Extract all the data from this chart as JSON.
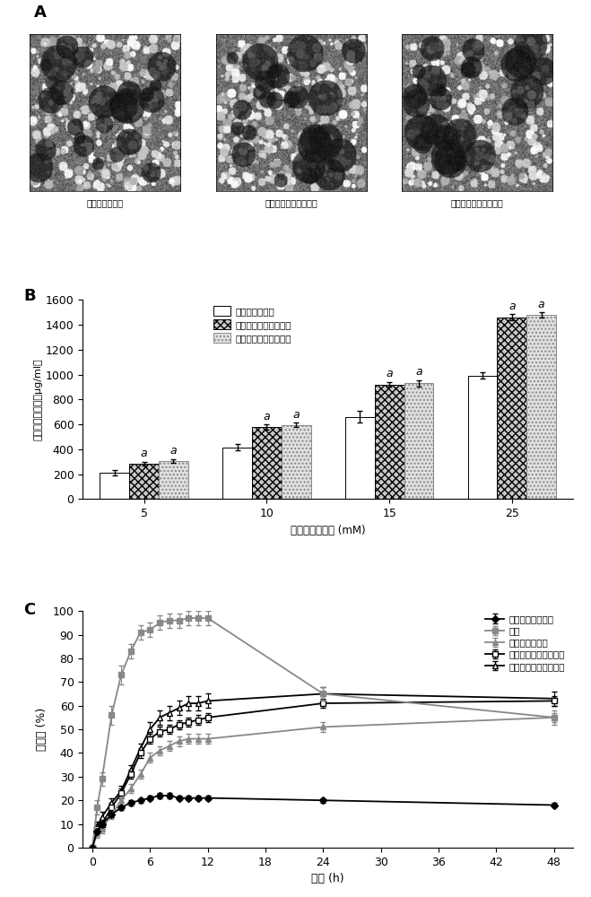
{
  "panel_A_labels": [
    "紫杉醒纳米胶束",
    "抗耔药紫杉醒纳米胶束",
    "功能化紫杉醒纳米胶束"
  ],
  "panel_B_xlabel": "载体材料的浓度 (mM)",
  "panel_B_ylabel": "紫杉醒的溶解度（μg/ml）",
  "panel_B_categories": [
    5,
    10,
    15,
    25
  ],
  "panel_B_series1_values": [
    210,
    415,
    660,
    990
  ],
  "panel_B_series1_errors": [
    20,
    25,
    45,
    25
  ],
  "panel_B_series2_values": [
    285,
    580,
    920,
    1460
  ],
  "panel_B_series2_errors": [
    15,
    20,
    20,
    25
  ],
  "panel_B_series3_values": [
    305,
    595,
    930,
    1480
  ],
  "panel_B_series3_errors": [
    15,
    18,
    25,
    20
  ],
  "panel_B_ylim": [
    0,
    1600
  ],
  "panel_B_yticks": [
    0,
    200,
    400,
    600,
    800,
    1000,
    1200,
    1400,
    1600
  ],
  "panel_B_legend": [
    "紫杉醒纳米胶束",
    "抗耔药紫杉醒纳米胶束",
    "功能化紫杉醒纳米胶束"
  ],
  "panel_C_xlabel": "时间 (h)",
  "panel_C_ylabel": "释放率 (%)",
  "panel_C_xticks": [
    0,
    6,
    12,
    18,
    24,
    30,
    36,
    42,
    48
  ],
  "panel_C_ylim": [
    0,
    100
  ],
  "panel_C_yticks": [
    0,
    10,
    20,
    30,
    40,
    50,
    60,
    70,
    80,
    90,
    100
  ],
  "series_dry_x": [
    0,
    0.5,
    1,
    2,
    3,
    4,
    5,
    6,
    7,
    8,
    9,
    10,
    11,
    12,
    24,
    48
  ],
  "series_dry_y": [
    0,
    7,
    10,
    14,
    17,
    19,
    20,
    21,
    22,
    22,
    21,
    21,
    21,
    21,
    20,
    18
  ],
  "series_dry_err": [
    0.5,
    1,
    1,
    1,
    1,
    1,
    1,
    1,
    1,
    1,
    1,
    1,
    1,
    1,
    1,
    1
  ],
  "series_taxol_x": [
    0,
    0.5,
    1,
    2,
    3,
    4,
    5,
    6,
    7,
    8,
    9,
    10,
    11,
    12,
    24,
    48
  ],
  "series_taxol_y": [
    0,
    17,
    29,
    56,
    73,
    83,
    91,
    92,
    95,
    96,
    96,
    97,
    97,
    97,
    65,
    55
  ],
  "series_taxol_err": [
    0.5,
    3,
    3,
    4,
    4,
    3,
    3,
    3,
    3,
    3,
    3,
    3,
    3,
    3,
    3,
    3
  ],
  "series_nano_x": [
    0,
    0.5,
    1,
    2,
    3,
    4,
    5,
    6,
    7,
    8,
    9,
    10,
    11,
    12,
    24,
    48
  ],
  "series_nano_y": [
    0,
    6,
    8,
    14,
    20,
    25,
    31,
    38,
    41,
    43,
    45,
    46,
    46,
    46,
    51,
    55
  ],
  "series_nano_err": [
    0.5,
    2,
    2,
    2,
    2,
    2,
    2,
    2,
    2,
    2,
    2,
    2,
    2,
    2,
    2,
    2
  ],
  "series_resist_x": [
    0,
    0.5,
    1,
    2,
    3,
    4,
    5,
    6,
    7,
    8,
    9,
    10,
    11,
    12,
    24,
    48
  ],
  "series_resist_y": [
    0,
    8,
    10,
    17,
    23,
    31,
    40,
    46,
    49,
    50,
    52,
    53,
    54,
    55,
    61,
    62
  ],
  "series_resist_err": [
    0.5,
    2,
    2,
    2,
    2,
    2,
    2,
    2,
    2,
    2,
    2,
    2,
    2,
    2,
    2,
    2
  ],
  "series_func_x": [
    0,
    0.5,
    1,
    2,
    3,
    4,
    5,
    6,
    7,
    8,
    9,
    10,
    11,
    12,
    24,
    48
  ],
  "series_func_y": [
    0,
    9,
    13,
    19,
    24,
    33,
    42,
    50,
    55,
    57,
    59,
    61,
    61,
    62,
    65,
    63
  ],
  "series_func_err": [
    0.5,
    2,
    2,
    2,
    2,
    2,
    2,
    3,
    3,
    3,
    3,
    3,
    3,
    3,
    3,
    3
  ],
  "panel_C_legend": [
    "紫杉醒干粉悬浮液",
    "泰素",
    "紫杉醒纳米胶束",
    "抗耔药紫杉醒纳米胶束",
    "功能化紫杉醒纳米胶束"
  ]
}
